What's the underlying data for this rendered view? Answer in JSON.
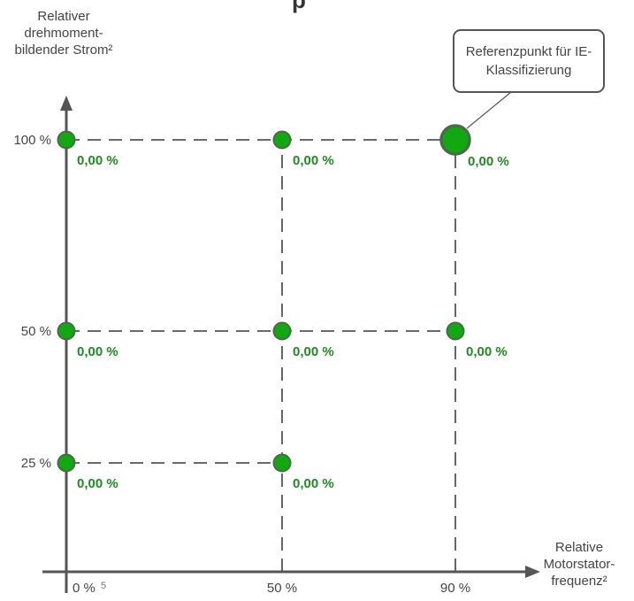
{
  "chart_data": {
    "type": "scatter",
    "title_fragment": "p",
    "ylabel": "Relativer drehmoment-bildender Strom²",
    "xlabel": "Relative Motorstator-frequenz²",
    "x_ticks": [
      "0 %",
      "50 %",
      "90 %"
    ],
    "x_tick_footnote": "5",
    "y_ticks": [
      "25 %",
      "50 %",
      "100 %"
    ],
    "points": [
      {
        "x": 0,
        "y": 100,
        "label": "0,00 %",
        "reference": false
      },
      {
        "x": 50,
        "y": 100,
        "label": "0,00 %",
        "reference": false
      },
      {
        "x": 90,
        "y": 100,
        "label": "0,00 %",
        "reference": true
      },
      {
        "x": 0,
        "y": 50,
        "label": "0,00 %",
        "reference": false
      },
      {
        "x": 50,
        "y": 50,
        "label": "0,00 %",
        "reference": false
      },
      {
        "x": 90,
        "y": 50,
        "label": "0,00 %",
        "reference": false
      },
      {
        "x": 0,
        "y": 25,
        "label": "0,00 %",
        "reference": false
      },
      {
        "x": 50,
        "y": 25,
        "label": "0,00 %",
        "reference": false
      }
    ],
    "callout": "Referenzpunkt für IE-Klassifizierung",
    "grid": false,
    "colors": {
      "point": "#11a811",
      "point_edge": "#4a6a4a",
      "value_label": "#1f8a1f",
      "axis": "#555555",
      "dash": "#555555"
    }
  }
}
